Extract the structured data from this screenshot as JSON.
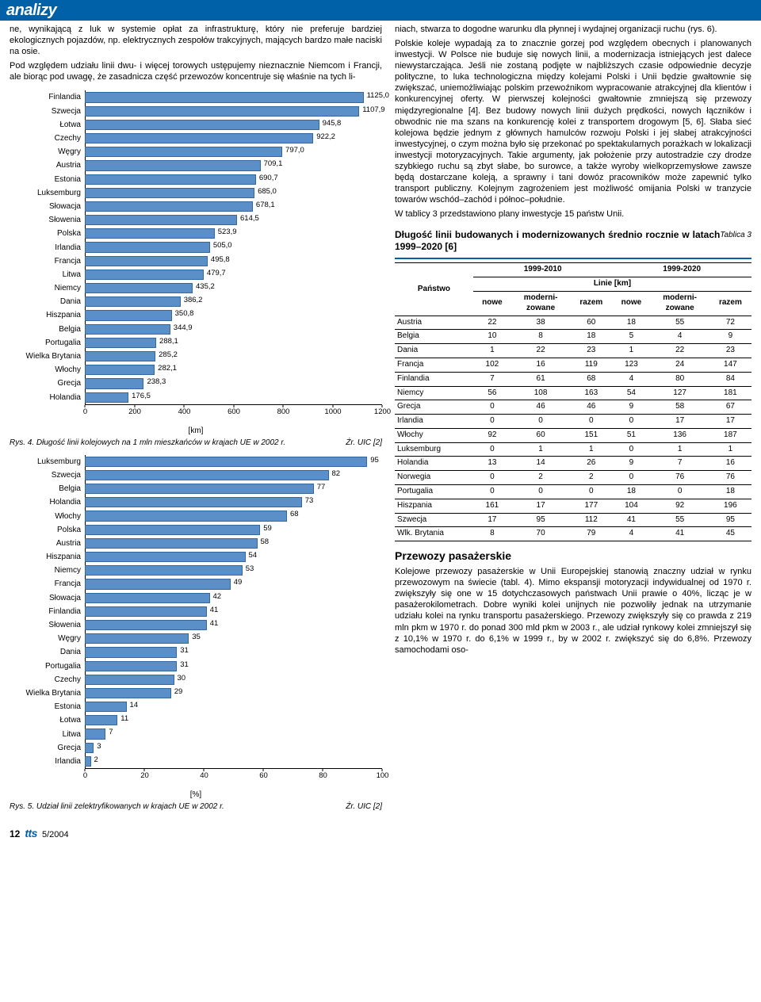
{
  "header": {
    "title": "analizy"
  },
  "left_intro": "ne, wynikającą z luk w systemie opłat za infrastrukturę, który nie preferuje bardziej ekologicznych pojazdów, np. elektrycznych zespołów trakcyjnych, mających bardzo małe naciski na osie.",
  "left_para2": "Pod względem udziału linii dwu- i więcej torowych ustępujemy nieznacznie Niemcom i Francji, ale biorąc pod uwagę, że zasadnicza część przewozów koncentruje się właśnie na tych li-",
  "chart1": {
    "type": "bar",
    "categories": [
      "Finlandia",
      "Szwecja",
      "Łotwa",
      "Czechy",
      "Węgry",
      "Austria",
      "Estonia",
      "Luksemburg",
      "Słowacja",
      "Słowenia",
      "Polska",
      "Irlandia",
      "Francja",
      "Litwa",
      "Niemcy",
      "Dania",
      "Hiszpania",
      "Belgia",
      "Portugalia",
      "Wielka Brytania",
      "Włochy",
      "Grecja",
      "Holandia"
    ],
    "values": [
      1125.0,
      1107.9,
      945.8,
      922.2,
      797.0,
      709.1,
      690.7,
      685.0,
      678.1,
      614.5,
      523.9,
      505.0,
      495.8,
      479.7,
      435.2,
      386.2,
      350.8,
      344.9,
      288.1,
      285.2,
      282.1,
      238.3,
      176.5
    ],
    "value_labels": [
      "1125,0",
      "1107,9",
      "945,8",
      "922,2",
      "797,0",
      "709,1",
      "690,7",
      "685,0",
      "678,1",
      "614,5",
      "523,9",
      "505,0",
      "495,8",
      "479,7",
      "435,2",
      "386,2",
      "350,8",
      "344,9",
      "288,1",
      "285,2",
      "282,1",
      "238,3",
      "176,5"
    ],
    "xlim": [
      0,
      1200
    ],
    "xtick_step": 200,
    "xticks": [
      "0",
      "200",
      "400",
      "600",
      "800",
      "1000",
      "1200"
    ],
    "unit": "[km]",
    "bar_color": "#5b8fc7",
    "bar_border": "#34679e",
    "background": "#ffffff",
    "label_fontsize": 10,
    "value_fontsize": 9.5
  },
  "chart1_caption": "Rys. 4. Długość linii kolejowych na 1 mln mieszkańców w krajach UE w 2002 r.",
  "chart1_src": "Źr. UIC [2]",
  "chart2": {
    "type": "bar",
    "categories": [
      "Luksemburg",
      "Szwecja",
      "Belgia",
      "Holandia",
      "Włochy",
      "Polska",
      "Austria",
      "Hiszpania",
      "Niemcy",
      "Francja",
      "Słowacja",
      "Finlandia",
      "Słowenia",
      "Węgry",
      "Dania",
      "Portugalia",
      "Czechy",
      "Wielka Brytania",
      "Estonia",
      "Łotwa",
      "Litwa",
      "Grecja",
      "Irlandia"
    ],
    "values": [
      95,
      82,
      77,
      73,
      68,
      59,
      58,
      54,
      53,
      49,
      42,
      41,
      41,
      35,
      31,
      31,
      30,
      29,
      14,
      11,
      7,
      3,
      2
    ],
    "value_labels": [
      "95",
      "82",
      "77",
      "73",
      "68",
      "59",
      "58",
      "54",
      "53",
      "49",
      "42",
      "41",
      "41",
      "35",
      "31",
      "31",
      "30",
      "29",
      "14",
      "11",
      "7",
      "3",
      "2"
    ],
    "xlim": [
      0,
      100
    ],
    "xtick_step": 20,
    "xticks": [
      "0",
      "20",
      "40",
      "60",
      "80",
      "100"
    ],
    "unit": "[%]",
    "bar_color": "#5b8fc7",
    "bar_border": "#34679e",
    "label_fontsize": 10,
    "value_fontsize": 9.5
  },
  "chart2_caption": "Rys. 5. Udział linii zelektryfikowanych w krajach UE w 2002 r.",
  "chart2_src": "Źr. UIC [2]",
  "right_para1": "niach, stwarza to dogodne warunku dla płynnej i wydajnej organizacji ruchu (rys. 6).",
  "right_para2": "Polskie koleje wypadają za to znacznie gorzej pod względem obecnych i planowanych inwestycji. W Polsce nie buduje się nowych linii, a modernizacja istniejących jest dalece niewystarczająca. Jeśli nie zostaną podjęte w najbliższych czasie odpowiednie decyzje polityczne, to luka technologiczna między kolejami Polski i Unii będzie gwałtownie się zwiększać, uniemożliwiając polskim przewoźnikom wypracowanie atrakcyjnej dla klientów i konkurencyjnej oferty. W pierwszej kolejności gwałtownie zmniejszą się przewozy międzyregionalne [4]. Bez budowy nowych linii dużych prędkości, nowych łączników i obwodnic nie ma szans na konkurencję kolei z transportem drogowym [5, 6]. Słaba sieć kolejowa będzie jednym z głównych hamulców rozwoju Polski i jej słabej atrakcyjności inwestycyjnej, o czym można było się przekonać po spektakularnych porażkach w lokalizacji inwestycji motoryzacyjnych. Takie argumenty, jak położenie przy autostradzie czy drodze szybkiego ruchu są zbyt słabe, bo surowce, a także wyroby wielkoprzemysłowe zawsze będą dostarczane koleją, a sprawny i tani dowóz pracowników może zapewnić tylko transport publiczny. Kolejnym zagrożeniem jest możliwość omijania Polski w tranzycie towarów wschód–zachód i północ–południe.",
  "right_para3": "W tablicy 3 przedstawiono plany inwestycje 15 państw Unii.",
  "table3": {
    "caption_right": "Tablica 3",
    "title_main": "Długość linii budowanych i modernizowanych średnio rocznie w latach 1999–2020 [6]",
    "head_state": "Państwo",
    "head_p1": "1999-2010",
    "head_p2": "1999-2020",
    "head_span": "Linie [km]",
    "subheads": [
      "nowe",
      "moderni-zowane",
      "razem",
      "nowe",
      "moderni-zowane",
      "razem"
    ],
    "rows": [
      [
        "Austria",
        "22",
        "38",
        "60",
        "18",
        "55",
        "72"
      ],
      [
        "Belgia",
        "10",
        "8",
        "18",
        "5",
        "4",
        "9"
      ],
      [
        "Dania",
        "1",
        "22",
        "23",
        "1",
        "22",
        "23"
      ],
      [
        "Francja",
        "102",
        "16",
        "119",
        "123",
        "24",
        "147"
      ],
      [
        "Finlandia",
        "7",
        "61",
        "68",
        "4",
        "80",
        "84"
      ],
      [
        "Niemcy",
        "56",
        "108",
        "163",
        "54",
        "127",
        "181"
      ],
      [
        "Grecja",
        "0",
        "46",
        "46",
        "9",
        "58",
        "67"
      ],
      [
        "Irlandia",
        "0",
        "0",
        "0",
        "0",
        "17",
        "17"
      ],
      [
        "Włochy",
        "92",
        "60",
        "151",
        "51",
        "136",
        "187"
      ],
      [
        "Luksemburg",
        "0",
        "1",
        "1",
        "0",
        "1",
        "1"
      ],
      [
        "Holandia",
        "13",
        "14",
        "26",
        "9",
        "7",
        "16"
      ],
      [
        "Norwegia",
        "0",
        "2",
        "2",
        "0",
        "76",
        "76"
      ],
      [
        "Portugalia",
        "0",
        "0",
        "0",
        "18",
        "0",
        "18"
      ],
      [
        "Hiszpania",
        "161",
        "17",
        "177",
        "104",
        "92",
        "196"
      ],
      [
        "Szwecja",
        "17",
        "95",
        "112",
        "41",
        "55",
        "95"
      ],
      [
        "Wlk. Brytania",
        "8",
        "70",
        "79",
        "4",
        "41",
        "45"
      ]
    ]
  },
  "section2_title": "Przewozy pasażerskie",
  "right_para4": "Kolejowe przewozy pasażerskie w Unii Europejskiej stanowią znaczny udział w rynku przewozowym na świecie (tabl. 4). Mimo ekspansji motoryzacji indywidualnej od 1970 r. zwiększyły się one w 15 dotychczasowych państwach Unii prawie o 40%, licząc je w pasażerokilometrach. Dobre wyniki kolei unijnych nie pozwoliły jednak na utrzymanie udziału kolei na rynku transportu pasażerskiego. Przewozy zwiększyły się co prawda z 219 mln pkm w 1970 r. do ponad 300 mld pkm w 2003 r., ale udział rynkowy kolei zmniejszył się z 10,1% w 1970 r. do 6,1% w 1999 r., by w 2002 r. zwiększyć się do 6,8%. Przewozy samochodami oso-",
  "footer": {
    "page": "12",
    "magazine": "tts",
    "issue": "5/2004"
  },
  "colors": {
    "brand_blue": "#0060a8",
    "bar_fill": "#5b8fc7",
    "bar_border": "#34679e"
  }
}
